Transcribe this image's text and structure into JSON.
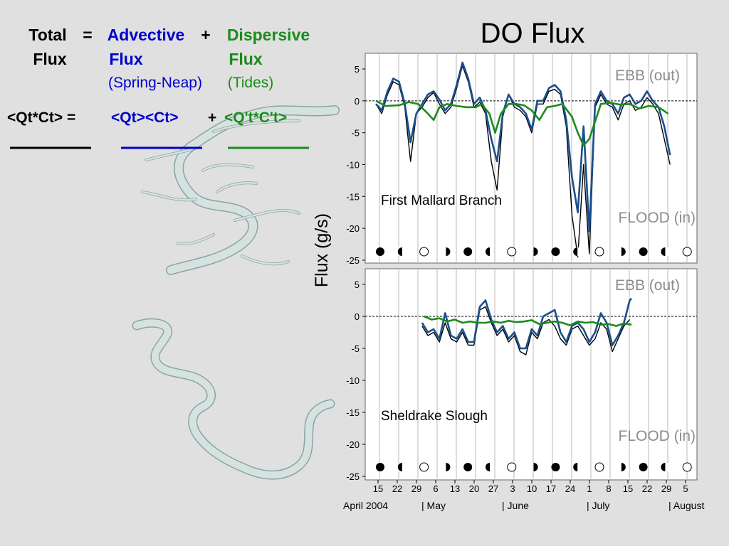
{
  "slide": {
    "title": "DO Flux"
  },
  "equation": {
    "row1": {
      "total_line1": "Total",
      "total_line2": "Flux",
      "eq": "=",
      "advective_line1": "Advective",
      "advective_line2": "Flux",
      "advective_note": "(Spring-Neap)",
      "plus": "+",
      "dispersive_line1": "Dispersive",
      "dispersive_line2": "Flux",
      "dispersive_note": "(Tides)"
    },
    "row2": {
      "total": "<Qt*Ct> =",
      "advective": "<Qt><Ct>",
      "plus": "+",
      "dispersive": "<Q't*C't>"
    },
    "colors": {
      "total": "#000000",
      "advective": "#0000cc",
      "dispersive": "#1a8c1a"
    }
  },
  "chart_data": [
    {
      "type": "line",
      "title": "First Mallard Branch",
      "ylabel": "Flux (g/s)",
      "ylim": [
        -25,
        7
      ],
      "yticks": [
        5,
        0,
        -5,
        -10,
        -15,
        -20,
        -25
      ],
      "xlim": [
        0,
        16.3
      ],
      "annotations": {
        "ebb": "EBB (out)",
        "flood": "FLOOD (in)"
      },
      "moon_phases": [
        "full",
        "third-quarter",
        "new",
        "first-quarter",
        "full",
        "third-quarter",
        "new",
        "first-quarter",
        "full",
        "third-quarter",
        "new",
        "first-quarter",
        "full",
        "third-quarter",
        "new"
      ],
      "series": [
        {
          "color": "#000000",
          "x": [
            0.3,
            0.6,
            0.9,
            1.2,
            1.5,
            1.8,
            2.1,
            2.4,
            2.7,
            3.0,
            3.3,
            3.6,
            3.9,
            4.2,
            4.5,
            4.8,
            5.1,
            5.4,
            5.7,
            6.0,
            6.3,
            6.6,
            6.9,
            7.2,
            7.5,
            7.8,
            8.1,
            8.4,
            8.7,
            9.0,
            9.3,
            9.6,
            9.9,
            10.2,
            10.5,
            10.8,
            11.1,
            11.4,
            11.7,
            12.0,
            12.3,
            12.6,
            12.9,
            13.2,
            13.5,
            13.8,
            14.1,
            14.4,
            14.7,
            15.0,
            15.3,
            15.6
          ],
          "y": [
            -0.5,
            -2,
            1,
            3,
            2.5,
            -1,
            -9.5,
            -2,
            -1,
            0.5,
            1.3,
            -0.5,
            -2,
            -1,
            2,
            5.5,
            3,
            -1,
            -0.2,
            -2,
            -9.5,
            -14,
            -2.5,
            1,
            -1,
            -1.5,
            -2.5,
            -5,
            -0.5,
            -0.5,
            1.5,
            1.8,
            1,
            -4,
            -18,
            -24.5,
            -10,
            -24,
            -1,
            1,
            -0.5,
            -1,
            -3,
            -0.5,
            0,
            -1.5,
            -1,
            0.5,
            -0.5,
            -2,
            -6,
            -10
          ]
        },
        {
          "color": "#1a4f8c",
          "x": [
            0.3,
            0.6,
            0.9,
            1.2,
            1.5,
            1.8,
            2.1,
            2.4,
            2.7,
            3.0,
            3.3,
            3.6,
            3.9,
            4.2,
            4.5,
            4.8,
            5.1,
            5.4,
            5.7,
            6.0,
            6.3,
            6.6,
            6.9,
            7.2,
            7.5,
            7.8,
            8.1,
            8.4,
            8.7,
            9.0,
            9.3,
            9.6,
            9.9,
            10.2,
            10.5,
            10.8,
            11.1,
            11.4,
            11.7,
            12.0,
            12.3,
            12.6,
            12.9,
            13.2,
            13.5,
            13.8,
            14.1,
            14.4,
            14.7,
            15.0,
            15.3,
            15.6
          ],
          "y": [
            -0.5,
            -1.5,
            1.5,
            3.5,
            3,
            -0.5,
            -6.5,
            -2,
            -0.5,
            1,
            1.5,
            0.2,
            -1.5,
            -0.5,
            2.5,
            6,
            3.5,
            -0.5,
            0.5,
            -1.5,
            -6,
            -9.5,
            -2,
            1,
            -0.5,
            -1,
            -2,
            -4.5,
            0,
            0,
            2,
            2.5,
            1.5,
            -3,
            -12,
            -17.5,
            -4,
            -20.5,
            -0.5,
            1.5,
            0,
            -0.5,
            -2,
            0.5,
            1,
            -0.5,
            0,
            1.5,
            0,
            -1,
            -4,
            -8.5
          ]
        },
        {
          "color": "#1a8c1a",
          "x": [
            0.3,
            0.8,
            1.5,
            2.0,
            2.5,
            3.0,
            3.3,
            3.6,
            4.0,
            4.5,
            5.0,
            5.5,
            5.8,
            6.2,
            6.5,
            6.8,
            7.2,
            7.6,
            8.0,
            8.4,
            8.8,
            9.2,
            9.6,
            10.0,
            10.5,
            10.8,
            11.1,
            11.4,
            12.0,
            12.5,
            13.0,
            13.5,
            14.0,
            14.5,
            15.0,
            15.5
          ],
          "y": [
            0,
            -0.8,
            -0.7,
            -0.2,
            -0.5,
            -2,
            -3,
            -1,
            -0.5,
            -0.8,
            -1,
            -1,
            -0.5,
            -2,
            -5,
            -2,
            -0.5,
            -0.5,
            -0.7,
            -1.5,
            -3,
            -1,
            -0.8,
            -0.5,
            -2.5,
            -5,
            -7,
            -6,
            -0.5,
            -0.3,
            -0.6,
            -0.5,
            -1.2,
            -0.8,
            -1,
            -2
          ]
        }
      ]
    },
    {
      "type": "line",
      "title": "Sheldrake Slough",
      "ylabel": "Flux (g/s)",
      "ylim": [
        -25,
        7
      ],
      "yticks": [
        5,
        0,
        -5,
        -10,
        -15,
        -20,
        -25
      ],
      "xlim": [
        0,
        16.3
      ],
      "annotations": {
        "ebb": "EBB (out)",
        "flood": "FLOOD (in)"
      },
      "moon_phases": [
        "full",
        "third-quarter",
        "new",
        "first-quarter",
        "full",
        "third-quarter",
        "new",
        "first-quarter",
        "full",
        "third-quarter",
        "new",
        "first-quarter",
        "full",
        "third-quarter",
        "new"
      ],
      "series": [
        {
          "color": "#000000",
          "x": [
            2.7,
            3.0,
            3.3,
            3.6,
            3.9,
            4.2,
            4.5,
            4.8,
            5.1,
            5.4,
            5.7,
            6.0,
            6.3,
            6.6,
            6.9,
            7.2,
            7.5,
            7.8,
            8.1,
            8.4,
            8.7,
            9.0,
            9.3,
            9.6,
            9.9,
            10.2,
            10.5,
            10.8,
            11.1,
            11.4,
            11.7,
            12.0,
            12.3,
            12.6,
            12.9,
            13.2,
            13.5
          ],
          "y": [
            -1.5,
            -3,
            -2.5,
            -4,
            -1,
            -3.5,
            -4,
            -2.5,
            -4.5,
            -4.5,
            1,
            1.5,
            -1,
            -3,
            -2,
            -4,
            -3,
            -5.5,
            -6,
            -2.5,
            -3.5,
            -1,
            -0.5,
            -1.5,
            -3.5,
            -4.5,
            -2,
            -1.5,
            -3,
            -4.5,
            -3.5,
            -1,
            -2,
            -5.5,
            -3.5,
            -1.5,
            -0.5
          ]
        },
        {
          "color": "#1a4f8c",
          "x": [
            2.7,
            3.0,
            3.3,
            3.6,
            3.9,
            4.2,
            4.5,
            4.8,
            5.1,
            5.4,
            5.7,
            6.0,
            6.3,
            6.6,
            6.9,
            7.2,
            7.5,
            7.8,
            8.1,
            8.4,
            8.7,
            9.0,
            9.3,
            9.6,
            9.9,
            10.2,
            10.5,
            10.8,
            11.1,
            11.4,
            11.7,
            12.0,
            12.3,
            12.6,
            12.9,
            13.2,
            13.5,
            13.6
          ],
          "y": [
            -1,
            -2.5,
            -2,
            -3.5,
            0.5,
            -3,
            -3.5,
            -2,
            -4,
            -4,
            1.5,
            2.5,
            -0.5,
            -2.5,
            -1.5,
            -3.5,
            -2.5,
            -5,
            -5,
            -2,
            -3,
            0,
            0.5,
            1,
            -2.5,
            -4,
            -1.5,
            -1,
            -2,
            -4,
            -2.5,
            0.5,
            -1,
            -4.5,
            -3,
            -1,
            2.5,
            2.8
          ]
        },
        {
          "color": "#1a8c1a",
          "x": [
            2.8,
            3.2,
            3.6,
            4.0,
            4.4,
            4.8,
            5.2,
            5.6,
            6.0,
            6.4,
            6.8,
            7.2,
            7.6,
            8.0,
            8.4,
            8.8,
            9.2,
            9.6,
            10.0,
            10.4,
            10.8,
            11.2,
            11.6,
            12.0,
            12.4,
            12.8,
            13.2,
            13.6
          ],
          "y": [
            0,
            -0.5,
            -0.3,
            -0.8,
            -0.5,
            -1,
            -0.8,
            -1,
            -1,
            -0.8,
            -1,
            -0.7,
            -0.9,
            -0.8,
            -0.6,
            -1.2,
            -1,
            -0.8,
            -1,
            -1.4,
            -0.8,
            -1,
            -0.9,
            -1.3,
            -1.2,
            -1.5,
            -1.1,
            -1.3
          ]
        }
      ]
    }
  ],
  "x_axis": {
    "tick_labels": [
      "15",
      "22",
      "29",
      "6",
      "13",
      "20",
      "27",
      "3",
      "10",
      "17",
      "24",
      "1",
      "8",
      "15",
      "22",
      "29",
      "5"
    ],
    "months": [
      "April 2004",
      "| May",
      "| June",
      "| July",
      "| August"
    ]
  }
}
